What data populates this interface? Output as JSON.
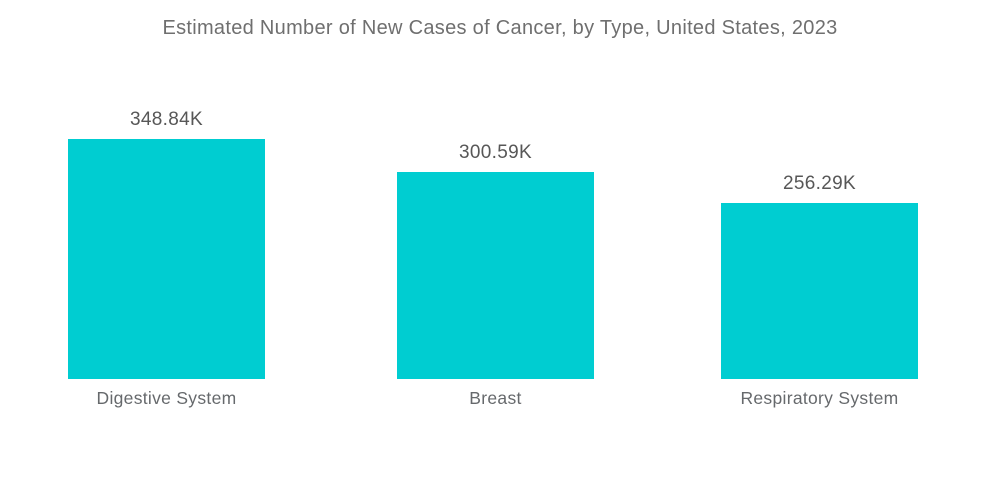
{
  "title": "Estimated Number of New Cases of Cancer, by Type, United States, 2023",
  "colors": {
    "background": "#ffffff",
    "bar": "#00CDD1",
    "title_text": "#6f6f6f",
    "value_label_text": "#575757",
    "category_label_text": "#66696c"
  },
  "chart_data": {
    "type": "bar",
    "title": "Estimated Number of New Cases of Cancer, by Type, United States, 2023",
    "categories": [
      "Digestive System",
      "Breast",
      "Respiratory System"
    ],
    "values": [
      348.84,
      300.59,
      256.29
    ],
    "value_labels": [
      "348.84K",
      "300.59K",
      "256.29K"
    ],
    "unit": "K",
    "xlabel": "",
    "ylabel": "",
    "ylim": [
      0,
      360
    ],
    "bar_color": "#00CDD1",
    "grid": false,
    "legend": false,
    "axes_visible": false,
    "value_label_position": "above-bar",
    "category_label_position": "below-bar"
  }
}
